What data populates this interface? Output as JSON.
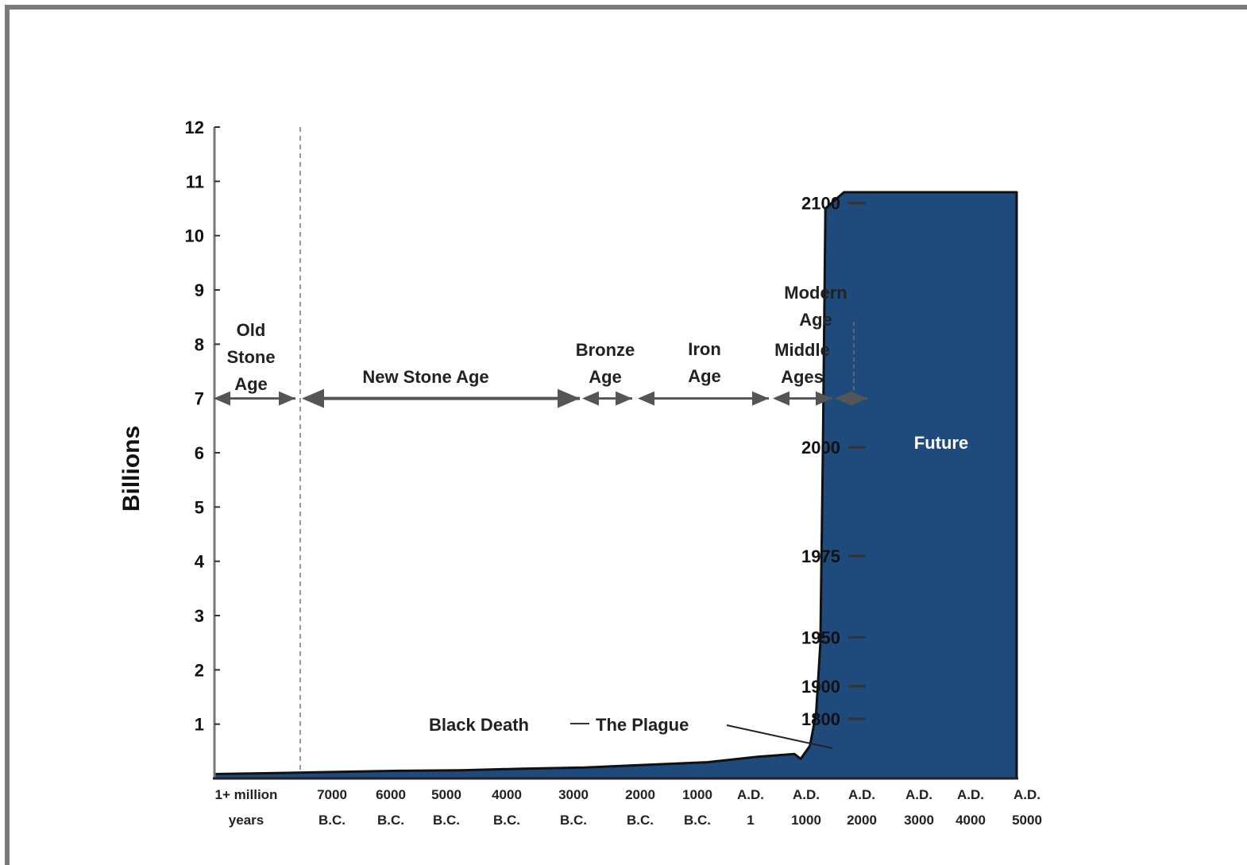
{
  "chart_data": {
    "type": "area",
    "title": "",
    "ylabel": "Billions",
    "xlabel": "",
    "ylim": [
      0,
      12
    ],
    "yticks": [
      "1",
      "2",
      "3",
      "4",
      "5",
      "6",
      "7",
      "8",
      "9",
      "10",
      "11",
      "12"
    ],
    "categories": [
      {
        "line1": "1+ million",
        "line2": "years"
      },
      {
        "line1": "7000",
        "line2": "B.C."
      },
      {
        "line1": "6000",
        "line2": "B.C."
      },
      {
        "line1": "5000",
        "line2": "B.C."
      },
      {
        "line1": "4000",
        "line2": "B.C."
      },
      {
        "line1": "3000",
        "line2": "B.C."
      },
      {
        "line1": "2000",
        "line2": "B.C."
      },
      {
        "line1": "1000",
        "line2": "B.C."
      },
      {
        "line1": "A.D.",
        "line2": "1"
      },
      {
        "line1": "A.D.",
        "line2": "1000"
      },
      {
        "line1": "A.D.",
        "line2": "2000"
      },
      {
        "line1": "A.D.",
        "line2": "3000"
      },
      {
        "line1": "A.D.",
        "line2": "4000"
      },
      {
        "line1": "A.D.",
        "line2": "5000"
      }
    ],
    "series": [
      {
        "points": [
          {
            "x": 0,
            "y": 0.08
          },
          {
            "x": 1,
            "y": 0.1
          },
          {
            "x": 2,
            "y": 0.12
          },
          {
            "x": 3,
            "y": 0.14
          },
          {
            "x": 4,
            "y": 0.15
          },
          {
            "x": 5,
            "y": 0.18
          },
          {
            "x": 6,
            "y": 0.2
          },
          {
            "x": 7,
            "y": 0.25
          },
          {
            "x": 8,
            "y": 0.3
          },
          {
            "x": 8.8,
            "y": 0.4
          },
          {
            "x": 9.4,
            "y": 0.45
          },
          {
            "x": 9.5,
            "y": 0.36
          },
          {
            "x": 9.65,
            "y": 0.6
          },
          {
            "x": 9.75,
            "y": 1.2
          },
          {
            "x": 9.82,
            "y": 2.5
          },
          {
            "x": 9.86,
            "y": 6
          },
          {
            "x": 9.9,
            "y": 10.5
          },
          {
            "x": 10.2,
            "y": 10.8
          },
          {
            "x": 11,
            "y": 10.8
          },
          {
            "x": 13,
            "y": 10.8
          }
        ]
      }
    ],
    "fill_color": "#1f4a7c",
    "eras": [
      {
        "lines": [
          "Old",
          "Stone",
          "Age"
        ]
      },
      {
        "lines": [
          "New Stone Age"
        ]
      },
      {
        "lines": [
          "Bronze",
          "Age"
        ]
      },
      {
        "lines": [
          "Iron",
          "Age"
        ]
      },
      {
        "lines": [
          "Middle",
          "Ages"
        ]
      },
      {
        "lines": [
          "Modern",
          "Age"
        ]
      }
    ],
    "date_markers": [
      {
        "label": "1800",
        "y": 1.1
      },
      {
        "label": "1900",
        "y": 1.7
      },
      {
        "label": "1950",
        "y": 2.6
      },
      {
        "label": "1975",
        "y": 4.1
      },
      {
        "label": "2000",
        "y": 6.1
      },
      {
        "label": "2100",
        "y": 10.6
      }
    ],
    "annotations": {
      "black_death": "Black Death",
      "plague": "The Plague",
      "future": "Future"
    }
  }
}
